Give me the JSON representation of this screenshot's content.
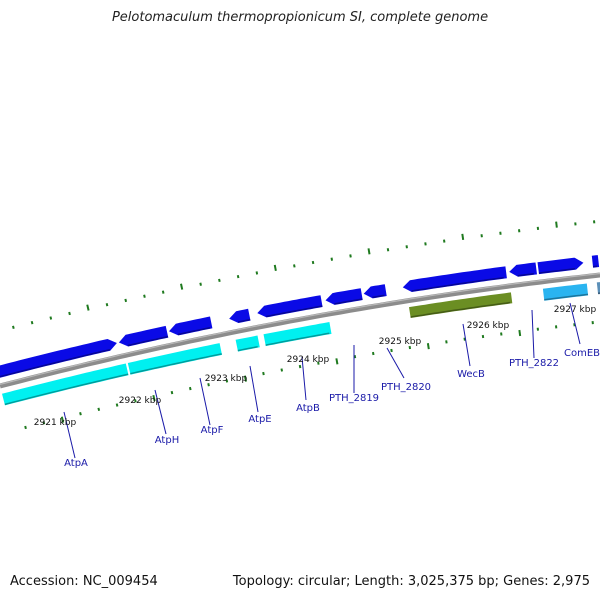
{
  "title": "Pelotomaculum thermopropionicum SI, complete genome",
  "footer": {
    "accession": "Accession: NC_009454",
    "summary": "Topology: circular; Length: 3,025,375 bp; Genes: 2,975"
  },
  "colors": {
    "backbone": "#8c8c8c",
    "forward_gene": "#0a0ae6",
    "reverse_gene": "#00f0f0",
    "reverse_gene_alt": "#2ab4f0",
    "rna_gene": "#6b8e23",
    "other_gene": "#5b8fb8",
    "tick": "#1f7a1f",
    "label": "#1a1aa8"
  },
  "tick_labels": [
    {
      "text": "2921 kbp",
      "kbp": 2921
    },
    {
      "text": "2922 kbp",
      "kbp": 2922
    },
    {
      "text": "2923 kbp",
      "kbp": 2923
    },
    {
      "text": "2924 kbp",
      "kbp": 2924
    },
    {
      "text": "2925 kbp",
      "kbp": 2925
    },
    {
      "text": "2926 kbp",
      "kbp": 2926
    },
    {
      "text": "2927 kbp",
      "kbp": 2927
    }
  ],
  "gene_labels": [
    {
      "text": "AtpA"
    },
    {
      "text": "AtpH"
    },
    {
      "text": "AtpF"
    },
    {
      "text": "AtpE"
    },
    {
      "text": "AtpB"
    },
    {
      "text": "PTH_2819"
    },
    {
      "text": "PTH_2820"
    },
    {
      "text": "WecB"
    },
    {
      "text": "PTH_2822"
    },
    {
      "text": "ComEB"
    }
  ]
}
